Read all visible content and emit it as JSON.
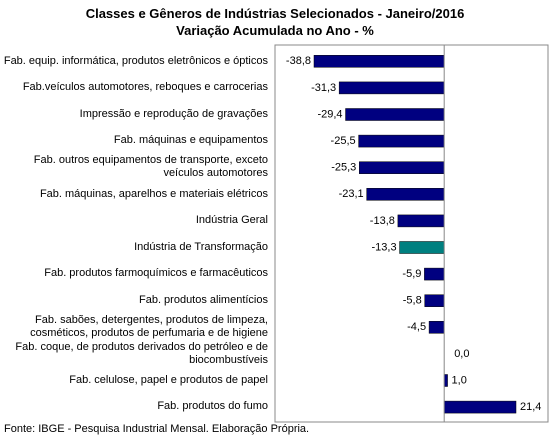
{
  "chart_data": {
    "type": "bar",
    "orientation": "horizontal",
    "title": "Classes e Gêneros de Indústrias Selecionados - Janeiro/2016",
    "subtitle": "Variação Acumulada no Ano - %",
    "categories": [
      "Fab. equip. informática, produtos eletrônicos e ópticos",
      "Fab.veículos automotores, reboques e carrocerias",
      "Impressão e reprodução de gravações",
      "Fab. máquinas e equipamentos",
      "Fab. outros equipamentos de transporte, exceto veículos automotores",
      "Fab. máquinas, aparelhos e materiais elétricos",
      "Indústria Geral",
      "Indústria de Transformação",
      "Fab. produtos farmoquímicos e farmacêuticos",
      "Fab. produtos alimentícios",
      "Fab. sabões, detergentes, produtos de limpeza, cosméticos, produtos de perfumaria e de higiene",
      "Fab. coque, de produtos derivados do petróleo e de biocombustíveis",
      "Fab. celulose, papel e produtos de papel",
      "Fab. produtos do fumo"
    ],
    "values": [
      -38.8,
      -31.3,
      -29.4,
      -25.5,
      -25.3,
      -23.1,
      -13.8,
      -13.3,
      -5.9,
      -5.8,
      -4.5,
      0,
      1,
      21.4
    ],
    "value_labels": [
      "-38,8",
      "-31,3",
      "-29,4",
      "-25,5",
      "-25,3",
      "-23,1",
      "-13,8",
      "-13,3",
      "-5,9",
      "-5,8",
      "-4,5",
      "0,0",
      "1,0",
      "21,4"
    ],
    "colors": [
      "#000080",
      "#000080",
      "#000080",
      "#000080",
      "#000080",
      "#000080",
      "#000080",
      "#008080",
      "#000080",
      "#000080",
      "#000080",
      "#000080",
      "#000080",
      "#000080"
    ],
    "source": "Fonte: IBGE - Pesquisa Industrial Mensal. Elaboração Própria."
  }
}
